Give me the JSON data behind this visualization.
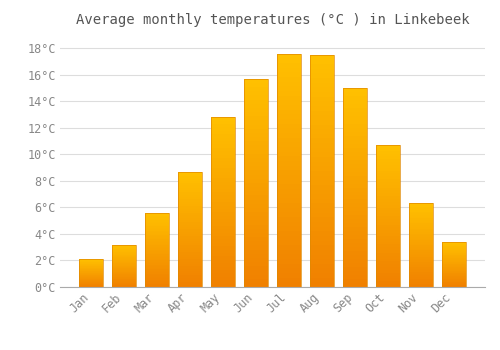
{
  "title": "Average monthly temperatures (°C ) in Linkebeek",
  "months": [
    "Jan",
    "Feb",
    "Mar",
    "Apr",
    "May",
    "Jun",
    "Jul",
    "Aug",
    "Sep",
    "Oct",
    "Nov",
    "Dec"
  ],
  "values": [
    2.1,
    3.2,
    5.6,
    8.7,
    12.8,
    15.7,
    17.6,
    17.5,
    15.0,
    10.7,
    6.3,
    3.4
  ],
  "bar_color_top": "#FFB700",
  "bar_color_bottom": "#F08000",
  "background_color": "#FFFFFF",
  "grid_color": "#DDDDDD",
  "tick_label_color": "#888888",
  "title_color": "#555555",
  "ylim": [
    0,
    19
  ],
  "yticks": [
    0,
    2,
    4,
    6,
    8,
    10,
    12,
    14,
    16,
    18
  ],
  "title_fontsize": 10,
  "tick_fontsize": 8.5,
  "bar_width": 0.72
}
